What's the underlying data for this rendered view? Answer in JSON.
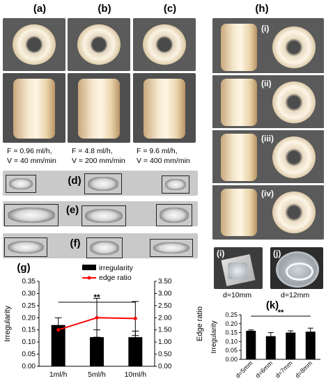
{
  "panel_labels": {
    "a": "(a)",
    "b": "(b)",
    "c": "(c)",
    "d": "(d)",
    "e": "(e)",
    "f": "(f)",
    "g": "(g)",
    "h": "(h)",
    "k": "(k)"
  },
  "h_sub": [
    "(i)",
    "(ii)",
    "(iii)",
    "(iv)"
  ],
  "ij": {
    "i_label": "(i)",
    "j_label": "(j)",
    "i_cap": "d=10mm",
    "j_cap": "d=12mm"
  },
  "captions": [
    {
      "f": "F = 0.96 ml/h,",
      "v": "V = 40 mm/min"
    },
    {
      "f": "F = 4.8 ml/h,",
      "v": "V = 200 mm/min"
    },
    {
      "f": "F = 9.6 ml/h,",
      "v": "V = 400 mm/min"
    }
  ],
  "colors": {
    "bar": "#000000",
    "edge_line": "#ff0000",
    "strip": "#c9c9c9",
    "photo_bg": "#5a5a5a"
  },
  "chart_data": [
    {
      "type": "bar",
      "categories": [
        "1ml/h",
        "5ml/h",
        "10ml/h"
      ],
      "series": [
        {
          "name": "irregularity",
          "values": [
            0.17,
            0.12,
            0.12
          ],
          "errors": [
            0.03,
            0.03,
            0.025
          ]
        },
        {
          "name": "edge ratio",
          "type": "line",
          "values": [
            1.5,
            2.0,
            1.97
          ],
          "errors": [
            0.1,
            0.8,
            0.7
          ]
        }
      ],
      "ylabel": "Irregularity",
      "y2label": "Edge ratio",
      "ylim": [
        0,
        0.35
      ],
      "y2lim": [
        0,
        3.5
      ],
      "yticks": [
        "0.00",
        "0.05",
        "0.10",
        "0.15",
        "0.20",
        "0.25",
        "0.30",
        "0.35"
      ],
      "y2ticks": [
        "0.00",
        "0.50",
        "1.00",
        "1.50",
        "2.00",
        "2.50",
        "3.00",
        "3.50"
      ],
      "annotation": "**",
      "legend": "top-right"
    },
    {
      "type": "bar",
      "categories": [
        "d=5mm",
        "d=6mm",
        "d=7mm",
        "d=8mm"
      ],
      "series": [
        {
          "name": "irregularity",
          "values": [
            0.16,
            0.13,
            0.15,
            0.155
          ],
          "errors": [
            0.005,
            0.02,
            0.01,
            0.02
          ]
        }
      ],
      "ylabel": "Irregularity",
      "ylim": [
        0,
        0.25
      ],
      "yticks": [
        "0.00",
        "0.05",
        "0.10",
        "0.15",
        "0.20",
        "0.25"
      ],
      "annotation": "**"
    }
  ]
}
